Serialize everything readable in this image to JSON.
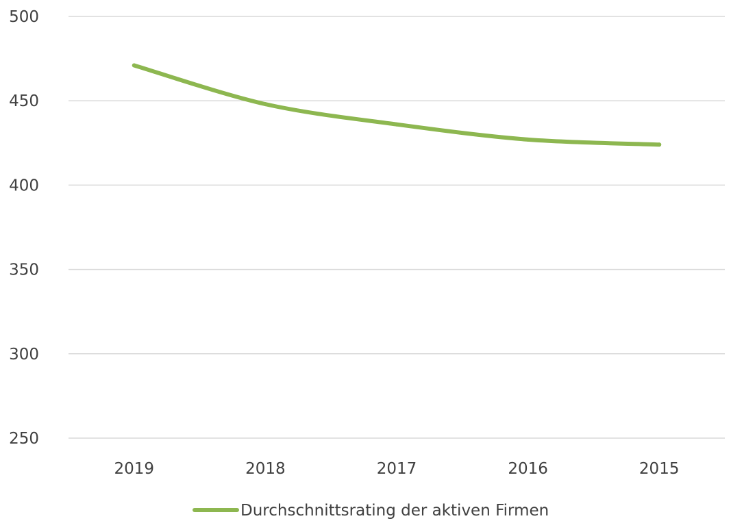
{
  "chart_data": {
    "type": "line",
    "title": "",
    "xlabel": "",
    "ylabel": "",
    "categories": [
      "2019",
      "2018",
      "2017",
      "2016",
      "2015"
    ],
    "series": [
      {
        "name": "Durchschnittsrating der aktiven Firmen",
        "values": [
          471,
          448,
          436,
          427,
          424
        ],
        "color": "#8db750"
      }
    ],
    "ylim": [
      250,
      500
    ],
    "yticks": [
      500,
      450,
      400,
      350,
      300,
      250
    ],
    "grid": true,
    "gridColor": "#d9d9d9",
    "legend": "bottom"
  }
}
